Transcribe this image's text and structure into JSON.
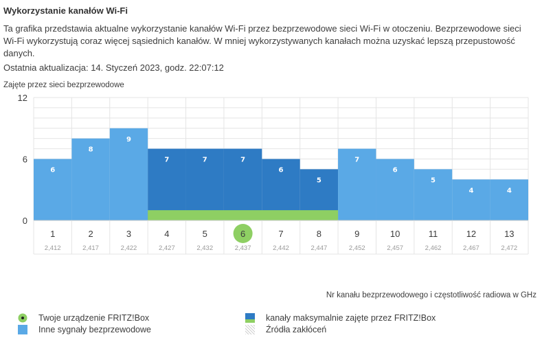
{
  "page": {
    "title": "Wykorzystanie kanałów Wi-Fi",
    "description": "Ta grafika przedstawia aktualne wykorzystanie kanałów Wi-Fi przez bezprzewodowe sieci Wi-Fi w otoczeniu. Bezprzewodowe sieci Wi-Fi wykorzystują coraz więcej sąsiednich kanałów. W mniej wykorzystywanych kanałach można uzyskać lepszą przepustowość danych.",
    "updated_label": "Ostatnia aktualizacja:",
    "updated_value": "14. Styczeń 2023, godz. 22:07:12"
  },
  "chart_data": {
    "type": "bar",
    "ylabel": "Zajęte przez sieci bezprzewodowe",
    "xlabel": "Nr kanału bezprzewodowego i częstotliwość radiowa w GHz",
    "ylim": [
      0,
      12
    ],
    "yticks": [
      "0",
      "6",
      "12"
    ],
    "categories": [
      "1",
      "2",
      "3",
      "4",
      "5",
      "6",
      "7",
      "8",
      "9",
      "10",
      "11",
      "12",
      "13"
    ],
    "frequencies": [
      "2,412",
      "2,417",
      "2,422",
      "2,427",
      "2,432",
      "2,437",
      "2,442",
      "2,447",
      "2,452",
      "2,457",
      "2,462",
      "2,467",
      "2,472"
    ],
    "values": [
      6,
      8,
      9,
      7,
      7,
      7,
      6,
      5,
      7,
      6,
      5,
      4,
      4
    ],
    "fritzbox_channels": [
      "4",
      "5",
      "6",
      "7",
      "8"
    ],
    "fritzbox_device_channel": "6",
    "fritzbox_band_level": 1,
    "grid": true,
    "colors": {
      "other": "#5aa9e6",
      "fritzbox": "#2e7bc4",
      "device": "#8ecf63",
      "band": "#8ecf63",
      "grid": "#e4e4e4"
    }
  },
  "legend": {
    "device_label": "Twoje urządzenie FRITZ!Box",
    "other_label": "Inne sygnały bezprzewodowe",
    "max_label": "kanały maksymalnie zajęte przez FRITZ!Box",
    "interference_label": "Źródła zakłóceń",
    "colors": {
      "device": "#8ecf63",
      "other": "#5aa9e6",
      "max_top": "#2e7bc4",
      "max_bottom": "#8ecf63"
    }
  }
}
